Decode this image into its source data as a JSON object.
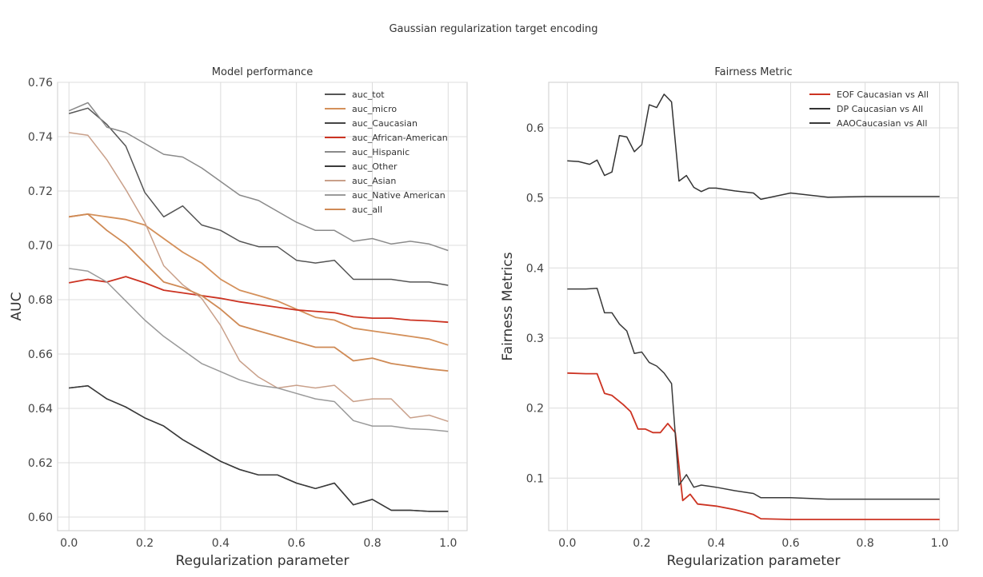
{
  "suptitle": "Gaussian regularization target encoding",
  "chart_data": [
    {
      "type": "line",
      "title": "Model performance",
      "xlabel": "Regularization parameter",
      "ylabel": "AUC",
      "xlim": [
        -0.03,
        1.05
      ],
      "ylim": [
        0.595,
        0.76
      ],
      "xticks": [
        0.0,
        0.2,
        0.4,
        0.6,
        0.8,
        1.0
      ],
      "xtick_labels": [
        "0.0",
        "0.2",
        "0.4",
        "0.6",
        "0.8",
        "1.0"
      ],
      "yticks": [
        0.6,
        0.62,
        0.64,
        0.66,
        0.68,
        0.7,
        0.72,
        0.74,
        0.76
      ],
      "ytick_labels": [
        "0.60",
        "0.62",
        "0.64",
        "0.66",
        "0.68",
        "0.70",
        "0.72",
        "0.74",
        "0.76"
      ],
      "grid": true,
      "legend_position": "top-right",
      "series": [
        {
          "name": "auc_tot",
          "color": "#555555",
          "width": 1.5,
          "x": [
            0.0,
            0.05,
            0.1,
            0.15,
            0.2,
            0.25,
            0.3,
            0.35,
            0.4,
            0.45,
            0.5,
            0.55,
            0.6,
            0.65,
            0.7,
            0.75,
            0.8,
            0.85,
            0.9,
            0.95,
            1.0
          ],
          "y": [
            0.7485,
            0.7505,
            0.7445,
            0.7365,
            0.7195,
            0.7105,
            0.7145,
            0.7075,
            0.7055,
            0.7015,
            0.6995,
            0.6995,
            0.6945,
            0.6935,
            0.6945,
            0.6875,
            0.6875,
            0.6875,
            0.6865,
            0.6865,
            0.6853
          ]
        },
        {
          "name": "auc_micro",
          "color": "#d4905a",
          "width": 1.8,
          "x": [
            0.0,
            0.05,
            0.1,
            0.15,
            0.2,
            0.25,
            0.3,
            0.35,
            0.4,
            0.45,
            0.5,
            0.55,
            0.6,
            0.65,
            0.7,
            0.75,
            0.8,
            0.85,
            0.9,
            0.95,
            1.0
          ],
          "y": [
            0.7105,
            0.7115,
            0.7105,
            0.7095,
            0.7075,
            0.7025,
            0.6975,
            0.6935,
            0.6875,
            0.6835,
            0.6815,
            0.6795,
            0.6765,
            0.6735,
            0.6725,
            0.6695,
            0.6685,
            0.6675,
            0.6665,
            0.6655,
            0.6633
          ]
        },
        {
          "name": "auc_Caucasian",
          "color": "#444444",
          "width": 1.5,
          "x": [
            0.0,
            0.05,
            0.1,
            0.15,
            0.2,
            0.25,
            0.3,
            0.35,
            0.4,
            0.45,
            0.5,
            0.55,
            0.6,
            0.65,
            0.7,
            0.75,
            0.8,
            0.85,
            0.9,
            0.95,
            1.0
          ],
          "y": [
            0.6475,
            0.6483,
            0.6435,
            0.6405,
            0.6365,
            0.6335,
            0.6285,
            0.6245,
            0.6205,
            0.6175,
            0.6155,
            0.6155,
            0.6125,
            0.6105,
            0.6125,
            0.6045,
            0.6065,
            0.6025,
            0.6025,
            0.6021,
            0.6021
          ]
        },
        {
          "name": "auc_African-American",
          "color": "#cc3322",
          "width": 1.8,
          "x": [
            0.0,
            0.05,
            0.1,
            0.15,
            0.2,
            0.25,
            0.3,
            0.35,
            0.4,
            0.45,
            0.5,
            0.55,
            0.6,
            0.65,
            0.7,
            0.75,
            0.8,
            0.85,
            0.9,
            0.95,
            1.0
          ],
          "y": [
            0.6862,
            0.6875,
            0.6865,
            0.6885,
            0.6862,
            0.6835,
            0.6825,
            0.6815,
            0.6805,
            0.6792,
            0.6782,
            0.6772,
            0.6762,
            0.6757,
            0.6752,
            0.6737,
            0.6732,
            0.6732,
            0.6725,
            0.6722,
            0.6717
          ]
        },
        {
          "name": "auc_Hispanic",
          "color": "#8a8a8a",
          "width": 1.5,
          "x": [
            0.0,
            0.05,
            0.1,
            0.15,
            0.2,
            0.25,
            0.3,
            0.35,
            0.4,
            0.45,
            0.5,
            0.55,
            0.6,
            0.65,
            0.7,
            0.75,
            0.8,
            0.85,
            0.9,
            0.95,
            1.0
          ],
          "y": [
            0.7495,
            0.7525,
            0.7435,
            0.7415,
            0.7375,
            0.7335,
            0.7325,
            0.7285,
            0.7235,
            0.7185,
            0.7165,
            0.7125,
            0.7085,
            0.7055,
            0.7055,
            0.7015,
            0.7025,
            0.7005,
            0.7015,
            0.7005,
            0.6981
          ]
        },
        {
          "name": "auc_Other",
          "color": "#3a3a3a",
          "width": 1.5,
          "x": [
            0.0,
            0.05,
            0.1,
            0.15,
            0.2,
            0.25,
            0.3,
            0.35,
            0.4,
            0.45,
            0.5,
            0.55,
            0.6,
            0.65,
            0.7,
            0.75,
            0.8,
            0.85,
            0.9,
            0.95,
            1.0
          ],
          "y": [
            0.6475,
            0.6483,
            0.6435,
            0.6405,
            0.6365,
            0.6335,
            0.6285,
            0.6245,
            0.6205,
            0.6175,
            0.6155,
            0.6155,
            0.6125,
            0.6105,
            0.6125,
            0.6045,
            0.6065,
            0.6025,
            0.6025,
            0.6021,
            0.6021
          ]
        },
        {
          "name": "auc_Asian",
          "color": "#c9a08a",
          "width": 1.5,
          "x": [
            0.0,
            0.05,
            0.1,
            0.15,
            0.2,
            0.25,
            0.3,
            0.35,
            0.4,
            0.45,
            0.5,
            0.55,
            0.6,
            0.65,
            0.7,
            0.75,
            0.8,
            0.85,
            0.9,
            0.95,
            1.0
          ],
          "y": [
            0.7415,
            0.7405,
            0.7315,
            0.7205,
            0.7085,
            0.6925,
            0.6855,
            0.6805,
            0.6705,
            0.6575,
            0.6515,
            0.6475,
            0.6485,
            0.6475,
            0.6485,
            0.6425,
            0.6435,
            0.6435,
            0.6365,
            0.6375,
            0.6352
          ]
        },
        {
          "name": "auc_Native American",
          "color": "#9a9a9a",
          "width": 1.5,
          "x": [
            0.0,
            0.05,
            0.1,
            0.15,
            0.2,
            0.25,
            0.3,
            0.35,
            0.4,
            0.45,
            0.5,
            0.55,
            0.6,
            0.65,
            0.7,
            0.75,
            0.8,
            0.85,
            0.9,
            0.95,
            1.0
          ],
          "y": [
            0.6915,
            0.6905,
            0.6865,
            0.6795,
            0.6725,
            0.6665,
            0.6615,
            0.6565,
            0.6535,
            0.6505,
            0.6485,
            0.6475,
            0.6455,
            0.6435,
            0.6425,
            0.6355,
            0.6335,
            0.6335,
            0.6325,
            0.6322,
            0.6315
          ]
        },
        {
          "name": "auc_all",
          "color": "#cf8a55",
          "width": 1.8,
          "x": [
            0.0,
            0.05,
            0.1,
            0.15,
            0.2,
            0.25,
            0.3,
            0.35,
            0.4,
            0.45,
            0.5,
            0.55,
            0.6,
            0.65,
            0.7,
            0.75,
            0.8,
            0.85,
            0.9,
            0.95,
            1.0
          ],
          "y": [
            0.7105,
            0.7115,
            0.7055,
            0.7005,
            0.6935,
            0.6865,
            0.6845,
            0.6815,
            0.6765,
            0.6705,
            0.6685,
            0.6665,
            0.6645,
            0.6625,
            0.6625,
            0.6575,
            0.6585,
            0.6565,
            0.6555,
            0.6545,
            0.6538
          ]
        }
      ]
    },
    {
      "type": "line",
      "title": "Fairness Metric",
      "xlabel": "Regularization parameter",
      "ylabel": "Fairness Metrics",
      "xlim": [
        -0.05,
        1.05
      ],
      "ylim": [
        0.025,
        0.665
      ],
      "xticks": [
        0.0,
        0.2,
        0.4,
        0.6,
        0.8,
        1.0
      ],
      "xtick_labels": [
        "0.0",
        "0.2",
        "0.4",
        "0.6",
        "0.8",
        "1.0"
      ],
      "yticks": [
        0.1,
        0.2,
        0.3,
        0.4,
        0.5,
        0.6
      ],
      "ytick_labels": [
        "0.1",
        "0.2",
        "0.3",
        "0.4",
        "0.5",
        "0.6"
      ],
      "grid": true,
      "legend_position": "top-right",
      "series": [
        {
          "name": "EOF Caucasian vs All",
          "color": "#cc3322",
          "width": 1.8,
          "x": [
            0.0,
            0.05,
            0.08,
            0.1,
            0.12,
            0.15,
            0.17,
            0.19,
            0.21,
            0.23,
            0.25,
            0.27,
            0.29,
            0.31,
            0.33,
            0.35,
            0.4,
            0.45,
            0.5,
            0.52,
            0.6,
            0.7,
            0.8,
            0.9,
            1.0
          ],
          "y": [
            0.25,
            0.249,
            0.249,
            0.221,
            0.218,
            0.205,
            0.195,
            0.17,
            0.17,
            0.165,
            0.165,
            0.178,
            0.165,
            0.068,
            0.077,
            0.063,
            0.06,
            0.055,
            0.048,
            0.042,
            0.041,
            0.041,
            0.041,
            0.041,
            0.041
          ]
        },
        {
          "name": "DP Caucasian vs All",
          "color": "#333333",
          "width": 1.5,
          "x": [
            0.0,
            0.03,
            0.06,
            0.08,
            0.1,
            0.12,
            0.14,
            0.16,
            0.18,
            0.2,
            0.22,
            0.24,
            0.26,
            0.28,
            0.3,
            0.32,
            0.34,
            0.36,
            0.38,
            0.4,
            0.45,
            0.5,
            0.52,
            0.6,
            0.7,
            0.8,
            0.9,
            1.0
          ],
          "y": [
            0.553,
            0.552,
            0.548,
            0.554,
            0.532,
            0.537,
            0.589,
            0.587,
            0.566,
            0.576,
            0.633,
            0.629,
            0.648,
            0.637,
            0.524,
            0.532,
            0.515,
            0.509,
            0.514,
            0.514,
            0.51,
            0.507,
            0.498,
            0.507,
            0.501,
            0.502,
            0.502,
            0.502
          ]
        },
        {
          "name": "AAOCaucasian vs All",
          "color": "#3a3a3a",
          "width": 1.5,
          "x": [
            0.0,
            0.05,
            0.08,
            0.1,
            0.12,
            0.14,
            0.16,
            0.18,
            0.2,
            0.22,
            0.24,
            0.26,
            0.28,
            0.3,
            0.32,
            0.34,
            0.36,
            0.4,
            0.45,
            0.5,
            0.52,
            0.6,
            0.7,
            0.8,
            0.9,
            1.0
          ],
          "y": [
            0.37,
            0.37,
            0.371,
            0.336,
            0.336,
            0.32,
            0.31,
            0.278,
            0.28,
            0.265,
            0.26,
            0.25,
            0.235,
            0.09,
            0.105,
            0.087,
            0.09,
            0.087,
            0.082,
            0.078,
            0.072,
            0.072,
            0.07,
            0.07,
            0.07,
            0.07
          ]
        }
      ]
    }
  ]
}
